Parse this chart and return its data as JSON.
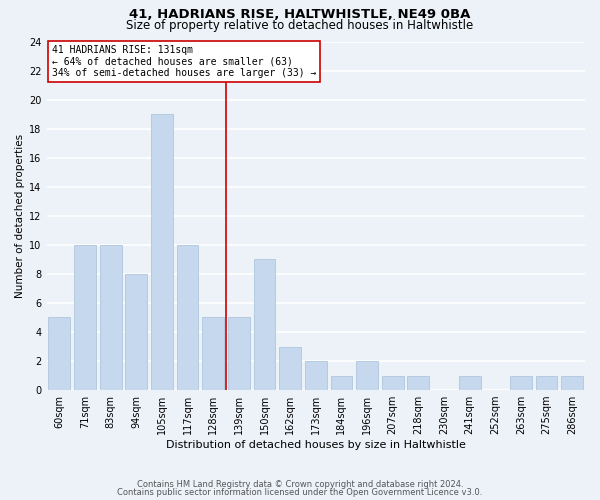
{
  "title1": "41, HADRIANS RISE, HALTWHISTLE, NE49 0BA",
  "title2": "Size of property relative to detached houses in Haltwhistle",
  "xlabel": "Distribution of detached houses by size in Haltwhistle",
  "ylabel": "Number of detached properties",
  "categories": [
    "60sqm",
    "71sqm",
    "83sqm",
    "94sqm",
    "105sqm",
    "117sqm",
    "128sqm",
    "139sqm",
    "150sqm",
    "162sqm",
    "173sqm",
    "184sqm",
    "196sqm",
    "207sqm",
    "218sqm",
    "230sqm",
    "241sqm",
    "252sqm",
    "263sqm",
    "275sqm",
    "286sqm"
  ],
  "values": [
    5,
    10,
    10,
    8,
    19,
    10,
    5,
    5,
    9,
    3,
    2,
    1,
    2,
    1,
    1,
    0,
    1,
    0,
    1,
    1,
    1
  ],
  "bar_color": "#c5d8ee",
  "bar_edge_color": "#a8c0d8",
  "vline_color": "#cc0000",
  "vline_x": 6.5,
  "annotation_text": "41 HADRIANS RISE: 131sqm\n← 64% of detached houses are smaller (63)\n34% of semi-detached houses are larger (33) →",
  "annotation_box_facecolor": "#ffffff",
  "annotation_box_edgecolor": "#cc0000",
  "ylim": [
    0,
    24
  ],
  "yticks": [
    0,
    2,
    4,
    6,
    8,
    10,
    12,
    14,
    16,
    18,
    20,
    22,
    24
  ],
  "bg_color": "#edf2f9",
  "grid_color": "#ffffff",
  "title1_fontsize": 9.5,
  "title2_fontsize": 8.5,
  "xlabel_fontsize": 8,
  "ylabel_fontsize": 7.5,
  "tick_fontsize": 7,
  "annot_fontsize": 7,
  "footer1": "Contains HM Land Registry data © Crown copyright and database right 2024.",
  "footer2": "Contains public sector information licensed under the Open Government Licence v3.0.",
  "footer_fontsize": 6
}
